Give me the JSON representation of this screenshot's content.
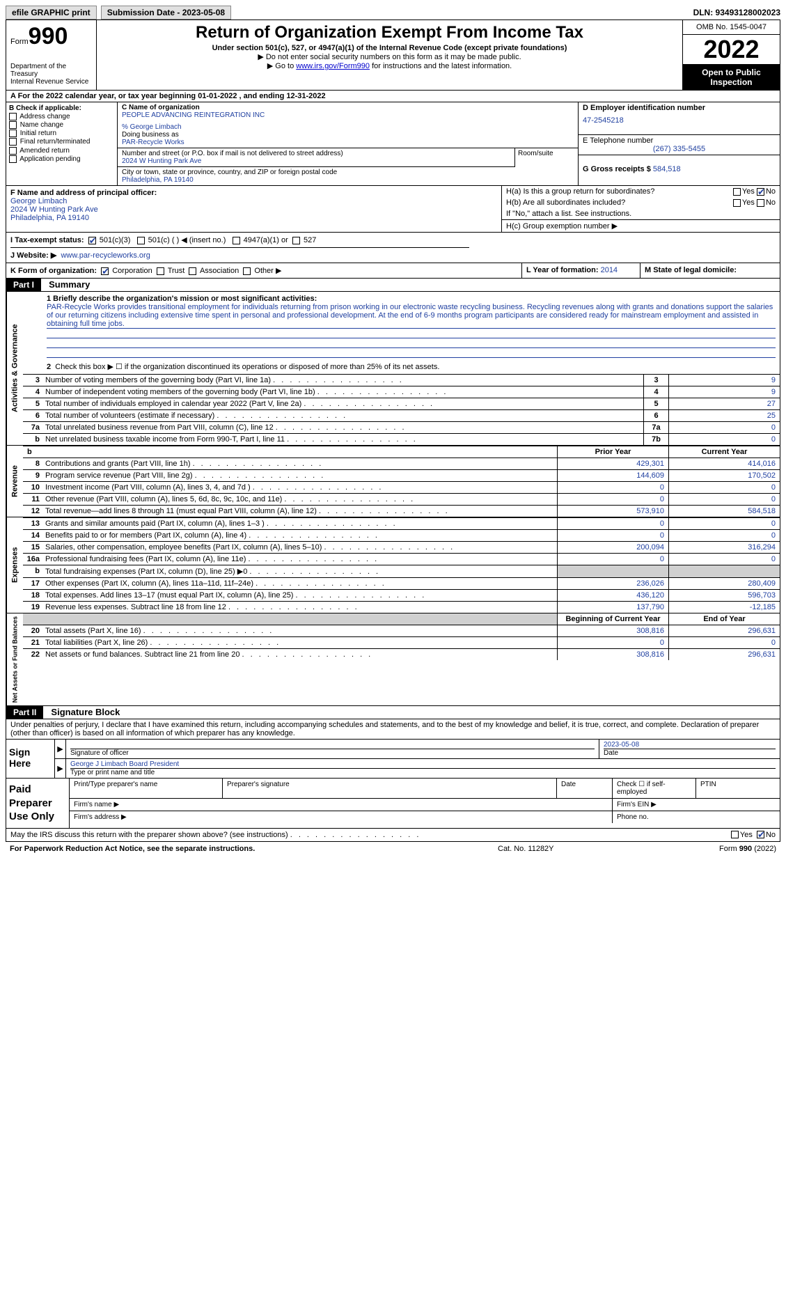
{
  "top_bar": {
    "efile": "efile GRAPHIC print",
    "submission": "Submission Date - 2023-05-08",
    "dln": "DLN: 93493128002023"
  },
  "header": {
    "form_word": "Form",
    "form_number": "990",
    "title": "Return of Organization Exempt From Income Tax",
    "subtitle": "Under section 501(c), 527, or 4947(a)(1) of the Internal Revenue Code (except private foundations)",
    "note1": "▶ Do not enter social security numbers on this form as it may be made public.",
    "note2_prefix": "▶ Go to ",
    "note2_link": "www.irs.gov/Form990",
    "note2_suffix": " for instructions and the latest information.",
    "dept": "Department of the Treasury",
    "irs": "Internal Revenue Service",
    "omb": "OMB No. 1545-0047",
    "year": "2022",
    "open": "Open to Public Inspection"
  },
  "row_a": "A For the 2022 calendar year, or tax year beginning 01-01-2022    , and ending 12-31-2022",
  "section_b": {
    "title": "B Check if applicable:",
    "items": [
      "Address change",
      "Name change",
      "Initial return",
      "Final return/terminated",
      "Amended return",
      "Application pending"
    ]
  },
  "section_c": {
    "label_name": "C Name of organization",
    "org_name": "PEOPLE ADVANCING REINTEGRATION INC",
    "care_of": "% George Limbach",
    "dba_label": "Doing business as",
    "dba": "PAR-Recycle Works",
    "addr_label": "Number and street (or P.O. box if mail is not delivered to street address)",
    "addr": "2024 W Hunting Park Ave",
    "room_label": "Room/suite",
    "city_label": "City or town, state or province, country, and ZIP or foreign postal code",
    "city": "Philadelphia, PA  19140"
  },
  "section_d": {
    "label": "D Employer identification number",
    "ein": "47-2545218",
    "tel_label": "E Telephone number",
    "tel": "(267) 335-5455",
    "gross_label": "G Gross receipts $",
    "gross": "584,518"
  },
  "section_f": {
    "label": "F  Name and address of principal officer:",
    "name": "George Limbach",
    "addr1": "2024 W Hunting Park Ave",
    "addr2": "Philadelphia, PA  19140"
  },
  "section_h": {
    "ha": "H(a)  Is this a group return for subordinates?",
    "hb": "H(b)  Are all subordinates included?",
    "hb_note": "If \"No,\" attach a list. See instructions.",
    "hc": "H(c)  Group exemption number ▶"
  },
  "row_i": {
    "label": "I   Tax-exempt status:",
    "opt1": "501(c)(3)",
    "opt2": "501(c) (  ) ◀ (insert no.)",
    "opt3": "4947(a)(1) or",
    "opt4": "527"
  },
  "row_j": {
    "label": "J   Website: ▶",
    "url": "www.par-recycleworks.org"
  },
  "row_k": {
    "label": "K Form of organization:",
    "opts": [
      "Corporation",
      "Trust",
      "Association",
      "Other ▶"
    ],
    "l_label": "L Year of formation:",
    "l_val": "2014",
    "m_label": "M State of legal domicile:"
  },
  "part1": {
    "header": "Part I",
    "title": "Summary",
    "line1_label": "1  Briefly describe the organization's mission or most significant activities:",
    "mission": "PAR-Recycle Works provides transitional employment for individuals returning from prison working in our electronic waste recycling business. Recycling revenues along with grants and donations support the salaries of our returning citizens including extensive time spent in personal and professional development. At the end of 6-9 months program participants are considered ready for mainstream employment and assisted in obtaining full time jobs.",
    "line2": "Check this box ▶ ☐  if the organization discontinued its operations or disposed of more than 25% of its net assets.",
    "vert_labels": {
      "ag": "Activities & Governance",
      "rev": "Revenue",
      "exp": "Expenses",
      "nafb": "Net Assets or Fund Balances"
    },
    "governance_lines": [
      {
        "n": "3",
        "text": "Number of voting members of the governing body (Part VI, line 1a)",
        "box": "3",
        "val": "9"
      },
      {
        "n": "4",
        "text": "Number of independent voting members of the governing body (Part VI, line 1b)",
        "box": "4",
        "val": "9"
      },
      {
        "n": "5",
        "text": "Total number of individuals employed in calendar year 2022 (Part V, line 2a)",
        "box": "5",
        "val": "27"
      },
      {
        "n": "6",
        "text": "Total number of volunteers (estimate if necessary)",
        "box": "6",
        "val": "25"
      },
      {
        "n": "7a",
        "text": "Total unrelated business revenue from Part VIII, column (C), line 12",
        "box": "7a",
        "val": "0"
      },
      {
        "n": "b",
        "text": "Net unrelated business taxable income from Form 990-T, Part I, line 11",
        "box": "7b",
        "val": "0"
      }
    ],
    "col_headers": {
      "prior": "Prior Year",
      "current": "Current Year"
    },
    "revenue_lines": [
      {
        "n": "8",
        "text": "Contributions and grants (Part VIII, line 1h)",
        "prior": "429,301",
        "current": "414,016"
      },
      {
        "n": "9",
        "text": "Program service revenue (Part VIII, line 2g)",
        "prior": "144,609",
        "current": "170,502"
      },
      {
        "n": "10",
        "text": "Investment income (Part VIII, column (A), lines 3, 4, and 7d )",
        "prior": "0",
        "current": "0"
      },
      {
        "n": "11",
        "text": "Other revenue (Part VIII, column (A), lines 5, 6d, 8c, 9c, 10c, and 11e)",
        "prior": "0",
        "current": "0"
      },
      {
        "n": "12",
        "text": "Total revenue—add lines 8 through 11 (must equal Part VIII, column (A), line 12)",
        "prior": "573,910",
        "current": "584,518"
      }
    ],
    "expense_lines": [
      {
        "n": "13",
        "text": "Grants and similar amounts paid (Part IX, column (A), lines 1–3 )",
        "prior": "0",
        "current": "0"
      },
      {
        "n": "14",
        "text": "Benefits paid to or for members (Part IX, column (A), line 4)",
        "prior": "0",
        "current": "0"
      },
      {
        "n": "15",
        "text": "Salaries, other compensation, employee benefits (Part IX, column (A), lines 5–10)",
        "prior": "200,094",
        "current": "316,294"
      },
      {
        "n": "16a",
        "text": "Professional fundraising fees (Part IX, column (A), line 11e)",
        "prior": "0",
        "current": "0"
      },
      {
        "n": "b",
        "text": "Total fundraising expenses (Part IX, column (D), line 25) ▶0",
        "prior": "GRAY",
        "current": "GRAY"
      },
      {
        "n": "17",
        "text": "Other expenses (Part IX, column (A), lines 11a–11d, 11f–24e)",
        "prior": "236,026",
        "current": "280,409"
      },
      {
        "n": "18",
        "text": "Total expenses. Add lines 13–17 (must equal Part IX, column (A), line 25)",
        "prior": "436,120",
        "current": "596,703"
      },
      {
        "n": "19",
        "text": "Revenue less expenses. Subtract line 18 from line 12",
        "prior": "137,790",
        "current": "-12,185"
      }
    ],
    "nafb_headers": {
      "begin": "Beginning of Current Year",
      "end": "End of Year"
    },
    "nafb_lines": [
      {
        "n": "20",
        "text": "Total assets (Part X, line 16)",
        "prior": "308,816",
        "current": "296,631"
      },
      {
        "n": "21",
        "text": "Total liabilities (Part X, line 26)",
        "prior": "0",
        "current": "0"
      },
      {
        "n": "22",
        "text": "Net assets or fund balances. Subtract line 21 from line 20",
        "prior": "308,816",
        "current": "296,631"
      }
    ]
  },
  "part2": {
    "header": "Part II",
    "title": "Signature Block",
    "declaration": "Under penalties of perjury, I declare that I have examined this return, including accompanying schedules and statements, and to the best of my knowledge and belief, it is true, correct, and complete. Declaration of preparer (other than officer) is based on all information of which preparer has any knowledge.",
    "sign_here": "Sign Here",
    "sig_officer": "Signature of officer",
    "sig_date": "Date",
    "sig_date_val": "2023-05-08",
    "sig_name": "George J Limbach  Board President",
    "sig_name_label": "Type or print name and title",
    "paid_label": "Paid Preparer Use Only",
    "prep_name": "Print/Type preparer's name",
    "prep_sig": "Preparer's signature",
    "prep_date": "Date",
    "prep_check": "Check ☐ if self-employed",
    "ptin": "PTIN",
    "firm_name": "Firm's name    ▶",
    "firm_ein": "Firm's EIN ▶",
    "firm_addr": "Firm's address ▶",
    "phone": "Phone no.",
    "discuss": "May the IRS discuss this return with the preparer shown above? (see instructions)"
  },
  "footer": {
    "left": "For Paperwork Reduction Act Notice, see the separate instructions.",
    "mid": "Cat. No. 11282Y",
    "right": "Form 990 (2022)"
  }
}
